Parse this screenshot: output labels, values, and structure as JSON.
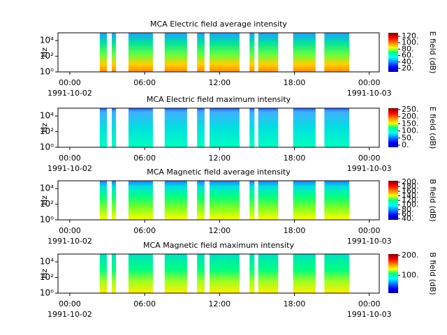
{
  "chart_data": [
    {
      "type": "spectrogram",
      "title": "MCA  Electric field average intensity",
      "ylabel": "Hz",
      "ylog": true,
      "ylim": [
        1,
        100000
      ],
      "yticks": [
        {
          "value": 1,
          "label": "10⁰"
        },
        {
          "value": 100,
          "label": "10²"
        },
        {
          "value": 10000,
          "label": "10⁴"
        }
      ],
      "xlim": [
        -0.95,
        24.8
      ],
      "xticks": [
        {
          "value": 0,
          "label": "00:00"
        },
        {
          "value": 6,
          "label": "06:00"
        },
        {
          "value": 12,
          "label": "12:00"
        },
        {
          "value": 18,
          "label": "18:00"
        },
        {
          "value": 24,
          "label": "00:00"
        }
      ],
      "xtick_dates": [
        {
          "value": 0,
          "label": "1991-10-02"
        },
        {
          "value": 24,
          "label": "1991-10-03"
        }
      ],
      "segments": [
        [
          2.4,
          2.97
        ],
        [
          3.36,
          3.7
        ],
        [
          4.7,
          6.66
        ],
        [
          7.6,
          9.4
        ],
        [
          10.2,
          10.8
        ],
        [
          11.2,
          13.6
        ],
        [
          14.4,
          14.8
        ],
        [
          15.1,
          16.7
        ],
        [
          17.9,
          19.7
        ],
        [
          20.4,
          22.4
        ]
      ],
      "colorbar_label": "E field (dB)",
      "clim": [
        9,
        131
      ],
      "cticks": [
        {
          "value": 20,
          "label": "20."
        },
        {
          "value": 40,
          "label": "40."
        },
        {
          "value": 60,
          "label": "60."
        },
        {
          "value": 80,
          "label": "80."
        },
        {
          "value": 100,
          "label": "100."
        },
        {
          "value": 120,
          "label": "120."
        }
      ]
    },
    {
      "type": "spectrogram",
      "title": "MCA  Electric field maximum intensity",
      "ylabel": "Hz",
      "ylog": true,
      "ylim": [
        1,
        100000
      ],
      "yticks": [
        {
          "value": 1,
          "label": "10⁰"
        },
        {
          "value": 100,
          "label": "10²"
        },
        {
          "value": 10000,
          "label": "10⁴"
        }
      ],
      "xlim": [
        -0.95,
        24.8
      ],
      "xticks": [
        {
          "value": 0,
          "label": "00:00"
        },
        {
          "value": 6,
          "label": "06:00"
        },
        {
          "value": 12,
          "label": "12:00"
        },
        {
          "value": 18,
          "label": "18:00"
        },
        {
          "value": 24,
          "label": "00:00"
        }
      ],
      "xtick_dates": [
        {
          "value": 0,
          "label": "1991-10-02"
        },
        {
          "value": 24,
          "label": "1991-10-03"
        }
      ],
      "segments": [
        [
          2.4,
          2.97
        ],
        [
          3.36,
          3.7
        ],
        [
          4.7,
          6.66
        ],
        [
          7.6,
          9.4
        ],
        [
          10.2,
          10.8
        ],
        [
          11.2,
          13.6
        ],
        [
          14.4,
          14.8
        ],
        [
          15.1,
          16.7
        ],
        [
          17.9,
          19.7
        ],
        [
          20.4,
          22.4
        ]
      ],
      "colorbar_label": "E field (dB)",
      "clim": [
        -15,
        260
      ],
      "cticks": [
        {
          "value": 0,
          "label": "0."
        },
        {
          "value": 50,
          "label": "50."
        },
        {
          "value": 100,
          "label": "100."
        },
        {
          "value": 150,
          "label": "150."
        },
        {
          "value": 200,
          "label": "200."
        },
        {
          "value": 250,
          "label": "250."
        }
      ]
    },
    {
      "type": "spectrogram",
      "title": "MCA  Magnetic field average intensity",
      "ylabel": "Hz",
      "ylog": true,
      "ylim": [
        1,
        100000
      ],
      "yticks": [
        {
          "value": 1,
          "label": "10⁰"
        },
        {
          "value": 100,
          "label": "10²"
        },
        {
          "value": 10000,
          "label": "10⁴"
        }
      ],
      "xlim": [
        -0.95,
        24.8
      ],
      "xticks": [
        {
          "value": 0,
          "label": "00:00"
        },
        {
          "value": 6,
          "label": "06:00"
        },
        {
          "value": 12,
          "label": "12:00"
        },
        {
          "value": 18,
          "label": "18:00"
        },
        {
          "value": 24,
          "label": "00:00"
        }
      ],
      "xtick_dates": [
        {
          "value": 0,
          "label": "1991-10-02"
        },
        {
          "value": 24,
          "label": "1991-10-03"
        }
      ],
      "segments": [
        [
          2.4,
          2.97
        ],
        [
          3.36,
          3.7
        ],
        [
          4.7,
          6.66
        ],
        [
          7.6,
          9.4
        ],
        [
          10.2,
          10.8
        ],
        [
          11.2,
          13.6
        ],
        [
          14.4,
          14.8
        ],
        [
          15.1,
          16.7
        ],
        [
          17.9,
          19.7
        ],
        [
          20.4,
          22.4
        ]
      ],
      "colorbar_label": "B field (dB)",
      "clim": [
        35,
        206
      ],
      "cticks": [
        {
          "value": 40,
          "label": "40."
        },
        {
          "value": 60,
          "label": "60."
        },
        {
          "value": 80,
          "label": "80."
        },
        {
          "value": 100,
          "label": "100."
        },
        {
          "value": 120,
          "label": "120."
        },
        {
          "value": 140,
          "label": "140."
        },
        {
          "value": 160,
          "label": "160."
        },
        {
          "value": 180,
          "label": "180."
        },
        {
          "value": 200,
          "label": "200."
        }
      ]
    },
    {
      "type": "spectrogram",
      "title": "MCA  Magnetic field maximum intensity",
      "ylabel": "Hz",
      "ylog": true,
      "ylim": [
        1,
        100000
      ],
      "yticks": [
        {
          "value": 1,
          "label": "10⁰"
        },
        {
          "value": 100,
          "label": "10²"
        },
        {
          "value": 10000,
          "label": "10⁴"
        }
      ],
      "xlim": [
        -0.95,
        24.8
      ],
      "xticks": [
        {
          "value": 0,
          "label": "00:00"
        },
        {
          "value": 6,
          "label": "06:00"
        },
        {
          "value": 12,
          "label": "12:00"
        },
        {
          "value": 18,
          "label": "18:00"
        },
        {
          "value": 24,
          "label": "00:00"
        }
      ],
      "xtick_dates": [
        {
          "value": 0,
          "label": "1991-10-02"
        },
        {
          "value": 24,
          "label": "1991-10-03"
        }
      ],
      "segments": [
        [
          2.4,
          2.97
        ],
        [
          3.36,
          3.7
        ],
        [
          4.7,
          6.66
        ],
        [
          7.6,
          9.4
        ],
        [
          10.2,
          10.8
        ],
        [
          11.2,
          13.6
        ],
        [
          14.4,
          14.8
        ],
        [
          15.1,
          16.7
        ],
        [
          17.9,
          19.7
        ],
        [
          20.4,
          22.4
        ]
      ],
      "colorbar_label": "B field (dB)",
      "clim": [
        10,
        207
      ],
      "cticks": [
        {
          "value": 100,
          "label": "100."
        },
        {
          "value": 200,
          "label": "200."
        }
      ]
    }
  ]
}
